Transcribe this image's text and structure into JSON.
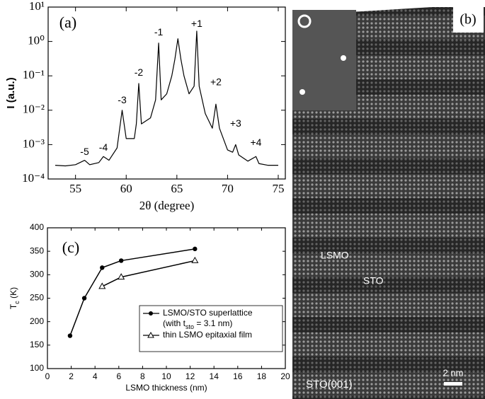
{
  "chart_data": [
    {
      "type": "line",
      "panel_label": "(a)",
      "xlabel": "2θ (degree)",
      "ylabel": "I (a.u.)",
      "log_y": true,
      "xlim": [
        52.3,
        75.7
      ],
      "xticks": [
        55,
        60,
        65,
        70,
        75
      ],
      "ylim": [
        0.0001,
        10
      ],
      "yticks": [
        {
          "value": 0.0001,
          "label": "10⁻⁴"
        },
        {
          "value": 0.001,
          "label": "10⁻³"
        },
        {
          "value": 0.01,
          "label": "10⁻²"
        },
        {
          "value": 0.1,
          "label": "10⁻¹"
        },
        {
          "value": 1,
          "label": "10⁰"
        },
        {
          "value": 10,
          "label": "10¹"
        }
      ],
      "x": [
        53,
        54,
        55,
        55.9,
        56.4,
        57.3,
        57.75,
        58.3,
        59.1,
        59.6,
        60.0,
        60.8,
        61.0,
        61.24,
        61.5,
        62.4,
        62.9,
        63.2,
        63.45,
        64.0,
        64.5,
        64.8,
        65.1,
        65.4,
        65.7,
        66.2,
        66.7,
        66.96,
        67.2,
        67.8,
        68.5,
        68.85,
        69.2,
        70.0,
        70.5,
        70.8,
        71.1,
        72.0,
        72.8,
        73.1,
        74,
        75
      ],
      "series": [
        {
          "color": "#000000",
          "values": [
            0.00025,
            0.00024,
            0.00026,
            0.00035,
            0.00026,
            0.0003,
            0.00045,
            0.00035,
            0.0008,
            0.01,
            0.0015,
            0.0015,
            0.004,
            0.06,
            0.004,
            0.006,
            0.02,
            0.9,
            0.02,
            0.03,
            0.1,
            0.3,
            1.2,
            0.3,
            0.1,
            0.03,
            0.05,
            2.0,
            0.05,
            0.008,
            0.003,
            0.015,
            0.003,
            0.0007,
            0.0006,
            0.001,
            0.0005,
            0.00033,
            0.00045,
            0.00028,
            0.00025,
            0.00025
          ]
        }
      ],
      "annotations": [
        {
          "text": "-5",
          "x": 55.9,
          "y": 0.0006
        },
        {
          "text": "-4",
          "x": 57.75,
          "y": 0.0008
        },
        {
          "text": "-3",
          "x": 59.6,
          "y": 0.019
        },
        {
          "text": "-2",
          "x": 61.24,
          "y": 0.12
        },
        {
          "text": "-1",
          "x": 63.2,
          "y": 1.8
        },
        {
          "text": "+1",
          "x": 66.96,
          "y": 3.2
        },
        {
          "text": "+2",
          "x": 68.85,
          "y": 0.063
        },
        {
          "text": "+3",
          "x": 70.8,
          "y": 0.004
        },
        {
          "text": "+4",
          "x": 72.8,
          "y": 0.0011
        }
      ]
    },
    {
      "type": "line",
      "panel_label": "(c)",
      "xlabel": "LSMO thickness (nm)",
      "ylabel": [
        "T",
        "c",
        " (K)"
      ],
      "xlim": [
        0,
        20
      ],
      "xticks": [
        0,
        2,
        4,
        6,
        8,
        10,
        12,
        14,
        16,
        18,
        20
      ],
      "ylim": [
        100,
        400
      ],
      "yticks": [
        100,
        150,
        200,
        250,
        300,
        350,
        400
      ],
      "series": [
        {
          "name": "LSMO/STO superlattice",
          "note": [
            "(with t",
            "sto",
            " = 3.1 nm)"
          ],
          "color": "#000000",
          "marker": "filled-circle",
          "x": [
            1.9,
            3.1,
            4.6,
            6.2,
            12.4
          ],
          "values": [
            170,
            250,
            315,
            330,
            355
          ]
        },
        {
          "name": "thin LSMO epitaxial film",
          "color": "#000000",
          "marker": "open-triangle",
          "x": [
            4.6,
            6.2,
            12.4
          ],
          "values": [
            275,
            295,
            330
          ]
        }
      ]
    }
  ],
  "image_panel": {
    "label": "(b)",
    "annotations": [
      "LSMO",
      "STO",
      "STO(001)"
    ],
    "scale_bar": "2 nm"
  }
}
